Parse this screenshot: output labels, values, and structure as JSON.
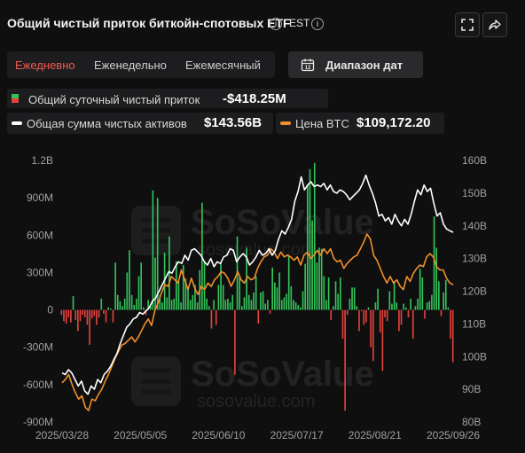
{
  "header": {
    "title": "Общий чистый приток биткойн-спотовых ETF",
    "timezone": "EST",
    "info_icon": "info-icon",
    "expand_icon": "fullscreen-icon",
    "share_icon": "share-icon"
  },
  "tabs": [
    {
      "label": "Ежедневно",
      "active": true
    },
    {
      "label": "Еженедельно",
      "active": false
    },
    {
      "label": "Ежемесячный",
      "active": false
    }
  ],
  "date_range": {
    "label": "Диапазон дат",
    "icon": "calendar-icon"
  },
  "legend": {
    "flow_label": "Общий суточный чистый приток",
    "flow_value": "-$418.25M",
    "assets_label": "Общая сумма чистых активов",
    "assets_value": "$143.56B",
    "btc_label": "Цена BTC",
    "btc_value": "$109,172.20"
  },
  "colors": {
    "inflow": "#34c25a",
    "outflow": "#e5423c",
    "assets_line": "#ffffff",
    "btc_line": "#f0902a",
    "active_tab": "#ee5a4f"
  },
  "watermark": {
    "brand": "SoSoValue",
    "url": "sosovalue.com"
  },
  "chart_data": {
    "type": "bar",
    "x_start": "2025-03-28",
    "x_end": "2025-09-26",
    "x_tick_labels": [
      "2025/03/28",
      "2025/05/05",
      "2025/06/10",
      "2025/07/17",
      "2025/08/21",
      "2025/09/26"
    ],
    "left_axis": {
      "ticks": [
        "1.2B",
        "900M",
        "600M",
        "300M",
        "0",
        "-300M",
        "-600M",
        "-900M"
      ],
      "ylim": [
        -900,
        1200
      ],
      "unit": "M USD"
    },
    "right_axis": {
      "ticks": [
        "160B",
        "150B",
        "140B",
        "130B",
        "120B",
        "110B",
        "100B",
        "90B",
        "80B"
      ],
      "ylim": [
        80,
        160
      ],
      "unit": "B USD"
    },
    "series": [
      {
        "name": "Общий суточный чистый приток",
        "kind": "bar",
        "axis": "left",
        "values": [
          -40,
          -90,
          -110,
          -60,
          -100,
          110,
          -80,
          -170,
          -90,
          -40,
          -60,
          -120,
          -280,
          -70,
          -50,
          -120,
          -60,
          90,
          -30,
          -100,
          20,
          10,
          -100,
          380,
          120,
          70,
          30,
          90,
          300,
          480,
          120,
          40,
          90,
          270,
          380,
          20,
          -40,
          80,
          30,
          960,
          420,
          900,
          120,
          60,
          460,
          100,
          590,
          80,
          90,
          390,
          230,
          60,
          360,
          250,
          180,
          80,
          120,
          200,
          60,
          320,
          860,
          390,
          90,
          30,
          -150,
          80,
          -120,
          200,
          380,
          200,
          80,
          90,
          60,
          120,
          -520,
          590,
          260,
          30,
          100,
          500,
          120,
          80,
          140,
          270,
          -110,
          140,
          150,
          50,
          80,
          -30,
          340,
          220,
          180,
          300,
          80,
          100,
          130,
          440,
          190,
          80,
          60,
          40,
          20,
          150,
          370,
          1010,
          1130,
          720,
          1180,
          380,
          500,
          490,
          270,
          80,
          260,
          -80,
          30,
          230,
          130,
          260,
          -230,
          -810,
          -40,
          90,
          180,
          180,
          30,
          -170,
          -10,
          -120,
          -100,
          20,
          -300,
          -410,
          60,
          170,
          -180,
          -490,
          -60,
          -90,
          150,
          50,
          230,
          60,
          -170,
          -120,
          50,
          20,
          -60,
          90,
          -230,
          30,
          90,
          330,
          260,
          -70,
          60,
          70,
          120,
          750,
          500,
          230,
          -50,
          140,
          240,
          20,
          -230,
          -420
        ]
      },
      {
        "name": "Общая сумма чистых активов",
        "kind": "line",
        "axis": "right",
        "values": [
          95,
          94.5,
          96,
          95,
          93,
          91,
          92.5,
          89.5,
          88.5,
          91,
          90,
          93,
          92,
          94.5,
          95.5,
          97,
          99,
          101,
          104,
          106.5,
          109,
          110,
          111.5,
          112,
          113.5,
          113,
          114,
          115,
          117,
          118,
          120,
          122,
          124,
          126,
          125.5,
          127.5,
          129,
          128.5,
          131,
          129.5,
          132.5,
          133,
          132,
          131,
          129,
          128,
          130,
          127.5,
          129,
          128.5,
          130.5,
          131,
          133,
          132.5,
          129,
          130.5,
          131.5,
          130.5,
          128,
          129,
          130.5,
          132.5,
          131,
          131.5,
          133,
          131,
          132.5,
          136,
          138.5,
          137.5,
          139.5,
          142,
          147.5,
          150.5,
          155,
          151,
          152.5,
          153.5,
          152,
          152.5,
          152,
          153,
          151,
          152.5,
          150.5,
          150,
          151,
          150.5,
          149.5,
          148,
          149,
          150,
          151,
          153,
          155.5,
          152.5,
          150,
          147,
          143,
          143.5,
          141.5,
          142.5,
          140.5,
          143.5,
          141.5,
          140,
          142,
          140.5,
          143.5,
          147.5,
          151,
          149.5,
          152.5,
          150.5,
          151.5,
          147,
          143,
          144,
          140.5,
          139,
          138.5,
          138
        ]
      },
      {
        "name": "Цена BTC",
        "kind": "line",
        "axis": "right",
        "values": [
          92,
          93,
          94.5,
          91.5,
          89,
          87,
          88,
          84.5,
          83.5,
          87,
          86.5,
          88.5,
          90,
          92.5,
          94.5,
          97,
          99.5,
          101.5,
          103.5,
          104,
          105,
          106,
          104.5,
          106,
          108,
          110,
          111.5,
          109.5,
          114,
          116.5,
          119.5,
          122,
          121.5,
          124.5,
          123.5,
          122.5,
          126.5,
          123.5,
          120.5,
          124,
          121,
          119,
          121.5,
          120.5,
          122.5,
          121.5,
          123.5,
          124.5,
          126,
          125.5,
          124,
          121.5,
          123.5,
          126,
          123.5,
          122.5,
          124.5,
          123.5,
          124,
          127,
          129,
          130.5,
          131,
          133,
          132,
          130,
          132,
          130.5,
          131,
          130.5,
          129.5,
          130.5,
          128,
          131,
          132,
          130,
          131,
          132.5,
          131,
          133,
          131.5,
          133,
          130,
          129,
          129.5,
          127,
          128.5,
          129.5,
          130.5,
          131,
          133,
          135,
          137.5,
          136,
          131,
          129.5,
          127,
          124.5,
          122.5,
          124.5,
          122.5,
          123.5,
          121.5,
          120.5,
          124.5,
          123,
          125.5,
          127,
          128,
          127.5,
          130.5,
          131.5,
          130.5,
          127.5,
          126.5,
          126.5,
          124,
          122.5,
          122
        ]
      }
    ]
  }
}
